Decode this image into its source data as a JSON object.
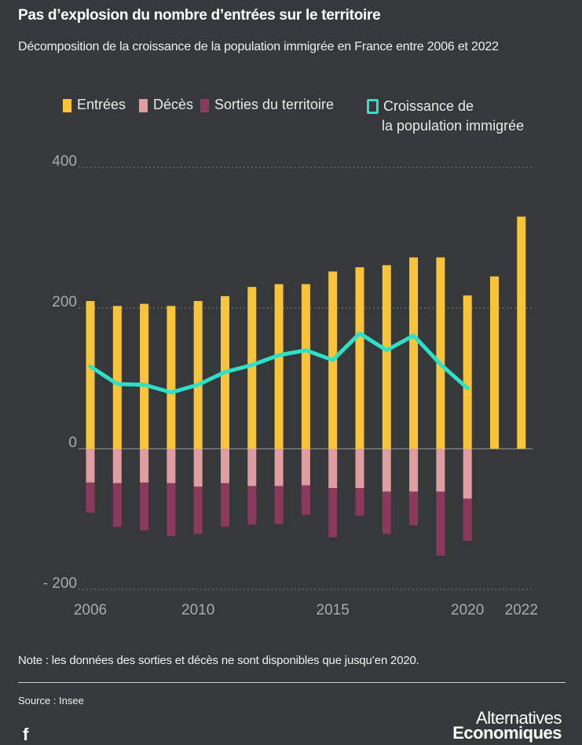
{
  "header": {
    "title": "Pas d’explosion du nombre d’entrées sur le territoire",
    "subtitle": "Décomposition de la croissance de la population immigrée en France entre 2006 et 2022"
  },
  "legend": {
    "entrees": "Entrées",
    "deces": "Décès",
    "sorties": "Sorties du territoire",
    "croissance_line1": "Croissance de",
    "croissance_line2": "la population immigrée"
  },
  "colors": {
    "entrees": "#f8c53a",
    "deces": "#de9ea1",
    "sorties": "#8b3a5b",
    "croissance": "#2fe0c8",
    "background": "#36393a"
  },
  "chart_data": {
    "type": "bar",
    "title": "Pas d’explosion du nombre d’entrées sur le territoire",
    "subtitle": "Décomposition de la croissance de la population immigrée en France entre 2006 et 2022",
    "categories": [
      2006,
      2007,
      2008,
      2009,
      2010,
      2011,
      2012,
      2013,
      2014,
      2015,
      2016,
      2017,
      2018,
      2019,
      2020,
      2021,
      2022
    ],
    "ylim": [
      -200,
      400
    ],
    "yticks": [
      400,
      200,
      0,
      -200
    ],
    "ytick_labels": [
      "400",
      "200",
      "0",
      "- 200"
    ],
    "xtick_labels": [
      {
        "year": 2006,
        "label": "2006"
      },
      {
        "year": 2010,
        "label": "2010"
      },
      {
        "year": 2015,
        "label": "2015"
      },
      {
        "year": 2020,
        "label": "2020"
      },
      {
        "year": 2022,
        "label": "2022"
      }
    ],
    "series": [
      {
        "name": "Entrées",
        "kind": "bar",
        "values": [
          210,
          203,
          206,
          203,
          210,
          217,
          230,
          234,
          234,
          252,
          258,
          261,
          272,
          272,
          218,
          245,
          330
        ]
      },
      {
        "name": "Décès",
        "kind": "bar",
        "values": [
          -48,
          -49,
          -48,
          -49,
          -54,
          -49,
          -53,
          -53,
          -52,
          -56,
          -56,
          -61,
          -61,
          -61,
          -71,
          null,
          null
        ]
      },
      {
        "name": "Sorties du territoire",
        "kind": "bar",
        "values": [
          -43,
          -62,
          -68,
          -75,
          -67,
          -62,
          -55,
          -54,
          -42,
          -70,
          -39,
          -60,
          -48,
          -91,
          -60,
          null,
          null
        ]
      },
      {
        "name": "Croissance de la population immigrée",
        "kind": "line",
        "values": [
          117,
          92,
          91,
          80,
          91,
          109,
          119,
          133,
          140,
          126,
          164,
          140,
          161,
          120,
          86,
          null,
          null
        ]
      }
    ]
  },
  "footer": {
    "note": "Note : les données des sorties et décès ne sont disponibles que jusqu’en 2020.",
    "source": "Source : Insee",
    "brand_line1": "Alternatives",
    "brand_line2": "Economiques",
    "facebook_glyph": "f"
  }
}
